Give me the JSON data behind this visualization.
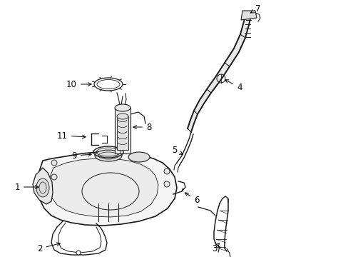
{
  "bg_color": "#ffffff",
  "line_color": "#1a1a1a",
  "label_color": "#000000",
  "fig_width": 4.89,
  "fig_height": 3.6,
  "dpi": 100,
  "font_size": 8.5,
  "font_weight": "normal"
}
